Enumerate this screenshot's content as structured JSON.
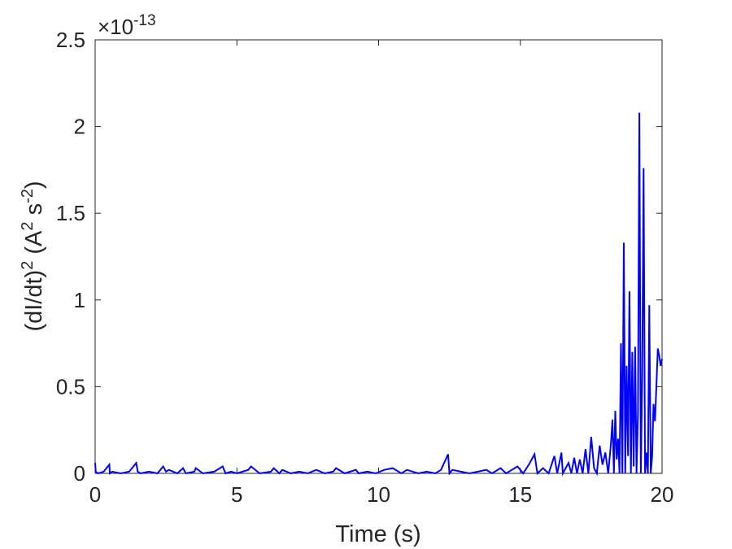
{
  "chart_data": {
    "type": "line",
    "xlabel": "Time (s)",
    "ylabel_parts": {
      "base1": "(dI/dt)",
      "sup1": "2",
      "base2": " (A",
      "sup2": "2",
      "base3": " s",
      "sup3": "-2",
      "base4": ")"
    },
    "y_exponent": {
      "prefix": "×10",
      "power": "-13"
    },
    "xlim": [
      0,
      20
    ],
    "ylim": [
      0,
      2.5
    ],
    "xticks": [
      "0",
      "5",
      "10",
      "15",
      "20"
    ],
    "xtick_values": [
      0,
      5,
      10,
      15,
      20
    ],
    "yticks": [
      "0",
      "0.5",
      "1",
      "1.5",
      "2",
      "2.5"
    ],
    "ytick_values": [
      0,
      0.5,
      1,
      1.5,
      2,
      2.5
    ],
    "grid": false,
    "line_color": "#0000ff",
    "series": [
      {
        "x": [
          0,
          0.02,
          0.1,
          0.3,
          0.5,
          0.52,
          0.6,
          0.9,
          1.2,
          1.45,
          1.5,
          1.6,
          1.9,
          2.2,
          2.4,
          2.5,
          2.6,
          2.9,
          3.1,
          3.2,
          3.5,
          3.55,
          3.8,
          4.2,
          4.5,
          4.6,
          4.8,
          5.0,
          5.4,
          5.5,
          5.8,
          6.2,
          6.3,
          6.5,
          6.6,
          6.9,
          7.2,
          7.5,
          7.8,
          8.1,
          8.4,
          8.5,
          8.8,
          9.2,
          9.3,
          9.6,
          9.9,
          10.2,
          10.5,
          10.8,
          11.0,
          11.4,
          11.7,
          12.0,
          12.2,
          12.45,
          12.5,
          12.6,
          12.9,
          13.2,
          13.5,
          13.8,
          14.0,
          14.3,
          14.5,
          14.7,
          14.9,
          15.1,
          15.3,
          15.5,
          15.6,
          15.8,
          16.0,
          16.2,
          16.3,
          16.45,
          16.5,
          16.7,
          16.8,
          16.9,
          17.0,
          17.1,
          17.2,
          17.3,
          17.4,
          17.5,
          17.6,
          17.7,
          17.8,
          17.9,
          18.0,
          18.1,
          18.2,
          18.25,
          18.3,
          18.35,
          18.4,
          18.45,
          18.5,
          18.55,
          18.6,
          18.65,
          18.7,
          18.75,
          18.8,
          18.85,
          18.9,
          18.95,
          19.0,
          19.05,
          19.1,
          19.15,
          19.2,
          19.25,
          19.3,
          19.35,
          19.4,
          19.45,
          19.5,
          19.55,
          19.6,
          19.65,
          19.7,
          19.75,
          19.8,
          19.85,
          19.9,
          19.95,
          20.0
        ],
        "y": [
          0.06,
          0.01,
          0.0,
          0.01,
          0.05,
          0.0,
          0.01,
          0.0,
          0.01,
          0.06,
          0.01,
          0.0,
          0.01,
          0.0,
          0.04,
          0.01,
          0.02,
          0.0,
          0.03,
          0.0,
          0.01,
          0.03,
          0.0,
          0.01,
          0.04,
          0.0,
          0.01,
          0.0,
          0.02,
          0.04,
          0.0,
          0.01,
          0.03,
          0.0,
          0.02,
          0.0,
          0.01,
          0.0,
          0.02,
          0.0,
          0.01,
          0.03,
          0.0,
          0.02,
          0.0,
          0.01,
          0.0,
          0.02,
          0.03,
          0.0,
          0.02,
          0.0,
          0.01,
          0.0,
          0.02,
          0.11,
          0.0,
          0.02,
          0.01,
          0.0,
          0.01,
          0.02,
          0.0,
          0.03,
          0.0,
          0.02,
          0.04,
          0.0,
          0.05,
          0.11,
          0.0,
          0.03,
          0.0,
          0.1,
          0.0,
          0.12,
          0.0,
          0.06,
          0.0,
          0.09,
          0.0,
          0.08,
          0.0,
          0.14,
          0.0,
          0.21,
          0.03,
          0.0,
          0.16,
          0.05,
          0.12,
          0.0,
          0.18,
          0.31,
          0.0,
          0.36,
          0.08,
          0.2,
          0.0,
          0.75,
          0.0,
          1.33,
          0.0,
          0.62,
          0.1,
          1.05,
          0.0,
          0.7,
          0.04,
          0.73,
          0.0,
          0.35,
          2.08,
          0.0,
          0.55,
          1.76,
          0.0,
          0.12,
          0.0,
          0.97,
          0.0,
          0.1,
          0.4,
          0.3,
          0.5,
          0.72,
          0.68,
          0.62,
          0.66
        ]
      }
    ]
  }
}
